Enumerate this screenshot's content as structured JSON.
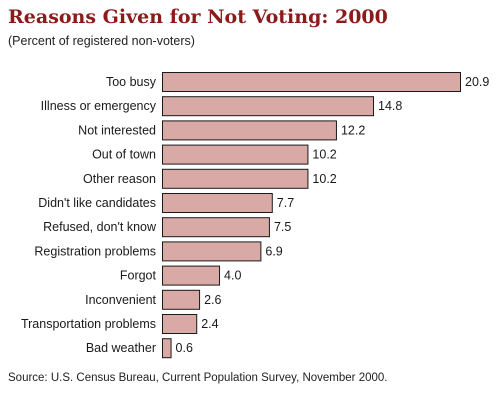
{
  "chart_data": {
    "type": "bar",
    "orientation": "horizontal",
    "title": "Reasons Given for Not Voting: 2000",
    "subtitle": "(Percent of registered non-voters)",
    "categories": [
      "Too busy",
      "Illness or emergency",
      "Not interested",
      "Out of town",
      "Other reason",
      "Didn't like candidates",
      "Refused, don't know",
      "Registration problems",
      "Forgot",
      "Inconvenient",
      "Transportation problems",
      "Bad weather"
    ],
    "value_labels": [
      "20.9",
      "14.8",
      "12.2",
      "10.2",
      "10.2",
      "7.7",
      "7.5",
      "6.9",
      "4.0",
      "2.6",
      "2.4",
      "0.6"
    ],
    "values": [
      20.9,
      14.8,
      12.2,
      10.2,
      10.2,
      7.7,
      7.5,
      6.9,
      4.0,
      2.6,
      2.4,
      0.6
    ],
    "xlim": [
      0,
      20.9
    ],
    "grid": false,
    "legend": "none",
    "bar_color": "#d9a9a6",
    "title_color": "#8b1a1a"
  },
  "source": "Source:  U.S. Census Bureau, Current Population Survey, November 2000."
}
